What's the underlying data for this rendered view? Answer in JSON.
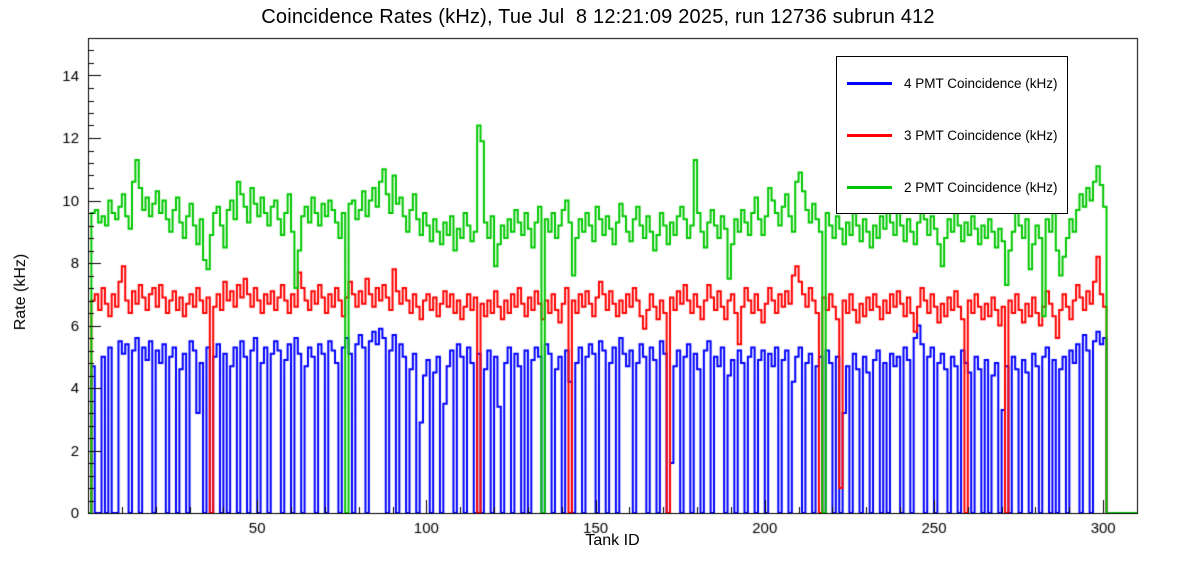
{
  "title": "Coincidence Rates (kHz), Tue Jul  8 12:21:09 2025, run 12736 subrun 412",
  "run_info": {
    "run": "12736",
    "subrun": "412",
    "timestamp": "Tue Jul  8 12:21:09 2025"
  },
  "chart_data": {
    "type": "line",
    "subtype": "step-histogram",
    "title": "Coincidence Rates (kHz), Tue Jul  8 12:21:09 2025, run 12736 subrun 412",
    "xlabel": "Tank ID",
    "ylabel": "Rate (kHz)",
    "xlim": [
      0,
      310
    ],
    "ylim": [
      0,
      15.2
    ],
    "xticks": [
      50,
      100,
      150,
      200,
      250,
      300
    ],
    "xminor": 10,
    "yticks": [
      0,
      2,
      4,
      6,
      8,
      10,
      12,
      14
    ],
    "yminor": 0.4,
    "grid": false,
    "legend_position": "top-right",
    "bin_width": 1,
    "x_bin_start": 0,
    "series": [
      {
        "name": "4 PMT Coincidence (kHz)",
        "color": "#0000ff",
        "values": [
          0,
          4.7,
          0,
          0,
          5.0,
          0,
          5.3,
          0,
          0,
          5.5,
          5.1,
          5.4,
          0,
          5.2,
          5.6,
          0,
          5.3,
          4.9,
          5.5,
          0,
          5.2,
          4.8,
          5.4,
          0,
          5.0,
          5.3,
          0,
          4.6,
          5.1,
          0,
          5.5,
          5.2,
          3.2,
          4.8,
          0,
          5.3,
          0,
          5.0,
          5.4,
          0,
          5.1,
          0,
          4.7,
          5.3,
          0,
          5.5,
          5.0,
          0,
          5.2,
          5.6,
          0,
          4.8,
          5.3,
          0,
          5.1,
          5.5,
          5.2,
          0,
          4.9,
          5.4,
          0,
          5.6,
          5.1,
          0,
          4.7,
          5.3,
          5.0,
          0,
          5.4,
          5.1,
          0,
          5.5,
          5.2,
          4.8,
          0,
          5.3,
          5.6,
          5.1,
          0,
          5.4,
          5.7,
          5.3,
          0,
          5.5,
          5.8,
          5.4,
          5.9,
          5.6,
          0,
          5.2,
          5.7,
          0,
          5.4,
          5.0,
          0,
          4.6,
          5.1,
          0,
          2.9,
          4.4,
          4.9,
          0,
          4.5,
          5.0,
          0,
          3.5,
          4.7,
          5.2,
          0,
          5.4,
          5.0,
          0,
          5.3,
          4.8,
          0,
          5.1,
          0,
          4.6,
          5.2,
          0,
          5.0,
          3.4,
          0,
          4.8,
          5.3,
          0,
          5.1,
          4.7,
          0,
          5.2,
          0,
          4.9,
          5.3,
          5.0,
          0,
          5.4,
          5.1,
          0,
          4.6,
          5.0,
          0,
          5.2,
          4.2,
          0,
          4.8,
          5.3,
          0,
          5.0,
          5.4,
          5.1,
          0,
          5.5,
          5.2,
          0,
          4.8,
          5.3,
          0,
          5.6,
          5.1,
          4.7,
          5.2,
          0,
          4.8,
          5.4,
          5.0,
          0,
          5.3,
          4.9,
          0,
          5.5,
          5.1,
          0,
          1.6,
          4.7,
          5.2,
          0,
          5.0,
          5.4,
          0,
          5.1,
          4.6,
          0,
          5.2,
          5.5,
          0,
          5.0,
          4.7,
          5.3,
          0,
          4.4,
          4.9,
          0,
          5.2,
          4.8,
          0,
          5.0,
          5.3,
          0,
          4.9,
          5.2,
          0,
          5.1,
          4.7,
          5.3,
          0,
          4.9,
          5.2,
          0,
          4.2,
          5.0,
          5.3,
          0,
          4.8,
          5.1,
          0,
          4.7,
          5.0,
          0,
          5.2,
          4.8,
          0,
          5.0,
          0,
          3.2,
          4.7,
          0,
          5.1,
          4.6,
          0,
          5.0,
          4.5,
          0,
          4.9,
          5.2,
          0,
          4.8,
          0,
          5.1,
          4.7,
          5.0,
          0,
          5.3,
          4.9,
          0,
          5.6,
          6.0,
          5.4,
          0,
          5.0,
          5.3,
          0,
          4.8,
          5.1,
          4.6,
          0,
          5.0,
          4.7,
          0,
          5.2,
          4.8,
          4.5,
          0,
          5.0,
          4.6,
          0,
          4.9,
          0,
          4.4,
          4.8,
          0,
          3.3,
          4.7,
          0,
          5.0,
          4.6,
          0,
          4.9,
          4.5,
          0,
          5.1,
          4.7,
          0,
          5.0,
          5.3,
          0,
          4.9,
          0,
          4.6,
          5.0,
          0,
          5.2,
          4.8,
          5.4,
          0,
          5.7,
          5.2,
          0,
          5.5,
          5.8,
          5.4,
          5.6,
          0,
          0,
          0
        ]
      },
      {
        "name": "3 PMT Coincidence (kHz)",
        "color": "#ff0000",
        "values": [
          0,
          6.8,
          7.0,
          6.5,
          7.2,
          6.7,
          6.3,
          7.0,
          6.6,
          7.4,
          7.9,
          6.8,
          6.4,
          7.1,
          6.7,
          7.3,
          6.9,
          6.5,
          7.0,
          7.2,
          6.6,
          7.3,
          6.9,
          6.4,
          6.8,
          7.1,
          6.5,
          6.9,
          6.3,
          6.7,
          7.0,
          6.6,
          7.2,
          6.8,
          6.4,
          6.9,
          0,
          6.6,
          7.0,
          6.5,
          7.4,
          6.8,
          7.1,
          6.6,
          7.3,
          6.9,
          7.5,
          7.0,
          6.6,
          7.2,
          6.8,
          6.4,
          7.0,
          6.7,
          7.1,
          6.5,
          6.9,
          7.3,
          6.8,
          6.4,
          7.0,
          6.6,
          7.7,
          7.2,
          6.8,
          6.5,
          7.1,
          6.7,
          7.3,
          6.9,
          6.4,
          7.0,
          6.6,
          7.2,
          6.8,
          6.3,
          6.9,
          7.4,
          7.0,
          6.6,
          7.1,
          6.7,
          7.5,
          7.0,
          6.6,
          7.2,
          6.8,
          7.3,
          6.9,
          6.5,
          7.8,
          7.1,
          6.7,
          7.2,
          6.8,
          6.4,
          7.0,
          6.6,
          6.2,
          6.8,
          7.0,
          6.5,
          6.9,
          6.3,
          6.7,
          7.1,
          6.6,
          7.0,
          6.4,
          6.8,
          6.2,
          6.6,
          7.0,
          6.5,
          6.9,
          0,
          6.7,
          6.3,
          6.8,
          6.4,
          7.1,
          6.6,
          6.2,
          6.8,
          6.4,
          7.0,
          6.6,
          7.2,
          6.7,
          6.3,
          6.9,
          6.5,
          7.1,
          6.7,
          6.2,
          6.8,
          6.4,
          7.0,
          6.5,
          6.1,
          6.7,
          7.2,
          0,
          6.8,
          6.4,
          7.0,
          6.6,
          7.1,
          6.7,
          6.3,
          6.9,
          7.4,
          7.0,
          6.5,
          7.1,
          6.7,
          6.3,
          6.8,
          6.4,
          7.0,
          6.6,
          7.2,
          6.8,
          6.3,
          5.9,
          6.5,
          7.0,
          6.6,
          6.2,
          6.8,
          6.4,
          0,
          6.9,
          6.5,
          7.1,
          6.7,
          7.3,
          6.8,
          6.4,
          7.0,
          6.6,
          6.2,
          6.8,
          7.3,
          6.9,
          6.5,
          7.1,
          6.6,
          6.2,
          6.8,
          7.0,
          6.4,
          5.4,
          6.6,
          7.2,
          6.8,
          6.4,
          7.0,
          6.5,
          6.1,
          6.7,
          7.2,
          6.8,
          6.4,
          7.0,
          6.6,
          7.1,
          6.7,
          7.6,
          7.9,
          7.4,
          7.0,
          6.6,
          7.2,
          6.8,
          6.4,
          0,
          6.9,
          6.5,
          7.0,
          6.6,
          6.2,
          0.8,
          6.8,
          6.4,
          7.0,
          6.5,
          6.1,
          6.7,
          6.3,
          6.9,
          6.5,
          7.0,
          6.6,
          6.2,
          6.8,
          6.4,
          7.0,
          6.6,
          7.1,
          6.7,
          6.3,
          6.9,
          6.4,
          5.8,
          6.6,
          7.2,
          6.8,
          6.4,
          7.0,
          6.6,
          6.1,
          6.7,
          6.3,
          6.9,
          6.5,
          7.1,
          6.6,
          6.2,
          0,
          6.8,
          6.4,
          7.0,
          6.6,
          6.2,
          6.7,
          6.3,
          6.9,
          6.5,
          6.0,
          6.6,
          0,
          6.8,
          6.4,
          7.0,
          6.5,
          6.1,
          6.7,
          6.3,
          6.9,
          6.4,
          6.0,
          6.6,
          7.1,
          6.7,
          6.3,
          5.6,
          6.5,
          7.0,
          6.6,
          6.2,
          6.8,
          7.3,
          6.9,
          6.5,
          7.1,
          6.7,
          7.4,
          8.2,
          7.0,
          6.6,
          0,
          0,
          0
        ]
      },
      {
        "name": "2 PMT Coincidence (kHz)",
        "color": "#00c800",
        "values": [
          0,
          9.6,
          9.7,
          9.3,
          9.5,
          9.2,
          10.0,
          9.6,
          9.4,
          9.8,
          10.2,
          9.5,
          9.1,
          10.6,
          11.3,
          10.4,
          9.7,
          10.1,
          9.5,
          9.9,
          10.3,
          9.6,
          10.0,
          9.4,
          9.0,
          9.7,
          10.1,
          9.3,
          8.8,
          9.5,
          9.9,
          9.2,
          8.6,
          9.4,
          8.1,
          7.8,
          8.9,
          9.6,
          9.8,
          9.2,
          8.5,
          9.7,
          10.0,
          9.4,
          10.6,
          10.2,
          9.8,
          9.3,
          10.4,
          9.9,
          9.5,
          10.1,
          9.6,
          9.2,
          9.8,
          10.0,
          9.4,
          8.9,
          9.6,
          10.2,
          9.0,
          7.2,
          8.4,
          9.5,
          9.8,
          9.3,
          10.1,
          9.6,
          9.2,
          9.9,
          9.5,
          10.0,
          9.7,
          9.3,
          8.8,
          9.6,
          0,
          9.9,
          10.0,
          9.4,
          9.7,
          10.3,
          9.5,
          10.0,
          10.4,
          9.8,
          10.6,
          11.0,
          10.2,
          9.6,
          10.8,
          9.9,
          10.1,
          9.5,
          9.0,
          9.7,
          10.2,
          9.4,
          8.9,
          9.6,
          9.2,
          8.7,
          9.4,
          9.0,
          8.6,
          9.3,
          8.9,
          9.5,
          8.4,
          9.1,
          8.8,
          9.6,
          9.2,
          8.7,
          9.0,
          12.4,
          11.9,
          9.3,
          8.8,
          9.5,
          7.9,
          8.6,
          9.2,
          8.8,
          9.4,
          9.0,
          9.7,
          9.3,
          8.9,
          9.6,
          9.1,
          8.5,
          9.3,
          9.8,
          0,
          9.4,
          9.0,
          9.6,
          8.8,
          9.2,
          9.7,
          10.0,
          9.3,
          7.6,
          8.8,
          9.4,
          9.0,
          9.6,
          9.2,
          8.7,
          9.8,
          9.4,
          8.9,
          9.5,
          9.1,
          8.6,
          9.3,
          9.9,
          9.5,
          9.0,
          8.7,
          9.4,
          9.8,
          9.2,
          8.8,
          9.5,
          9.0,
          8.4,
          8.9,
          9.6,
          9.2,
          8.6,
          9.3,
          8.9,
          9.5,
          9.8,
          9.4,
          8.8,
          9.2,
          11.3,
          9.6,
          9.0,
          8.5,
          9.3,
          9.7,
          9.2,
          8.8,
          9.5,
          9.1,
          7.5,
          8.6,
          9.4,
          9.0,
          9.7,
          9.3,
          8.9,
          9.6,
          10.1,
          9.4,
          8.9,
          9.5,
          10.4,
          10.0,
          9.6,
          9.2,
          9.8,
          10.2,
          9.5,
          9.0,
          10.6,
          10.9,
          10.3,
          9.7,
          9.3,
          9.9,
          9.4,
          9.0,
          0,
          9.6,
          9.2,
          8.8,
          9.5,
          9.1,
          8.6,
          9.3,
          8.9,
          9.6,
          9.2,
          8.7,
          9.4,
          9.0,
          8.5,
          9.2,
          8.8,
          9.5,
          9.1,
          9.7,
          9.3,
          8.9,
          9.6,
          9.2,
          8.7,
          9.4,
          9.0,
          8.6,
          9.3,
          9.8,
          9.4,
          8.9,
          9.5,
          9.1,
          8.6,
          7.9,
          8.8,
          9.4,
          9.0,
          9.6,
          9.2,
          8.7,
          9.3,
          8.9,
          9.5,
          9.1,
          8.6,
          9.2,
          8.8,
          9.4,
          9.0,
          8.5,
          9.1,
          8.7,
          7.3,
          8.4,
          9.0,
          9.6,
          9.2,
          8.8,
          9.4,
          7.8,
          8.6,
          9.2,
          8.8,
          6.3,
          9.4,
          9.0,
          9.6,
          8.4,
          7.6,
          8.2,
          8.8,
          9.4,
          9.0,
          9.7,
          10.2,
          9.8,
          10.4,
          10.0,
          10.6,
          11.1,
          10.5,
          9.8,
          0,
          0,
          0
        ]
      }
    ]
  }
}
